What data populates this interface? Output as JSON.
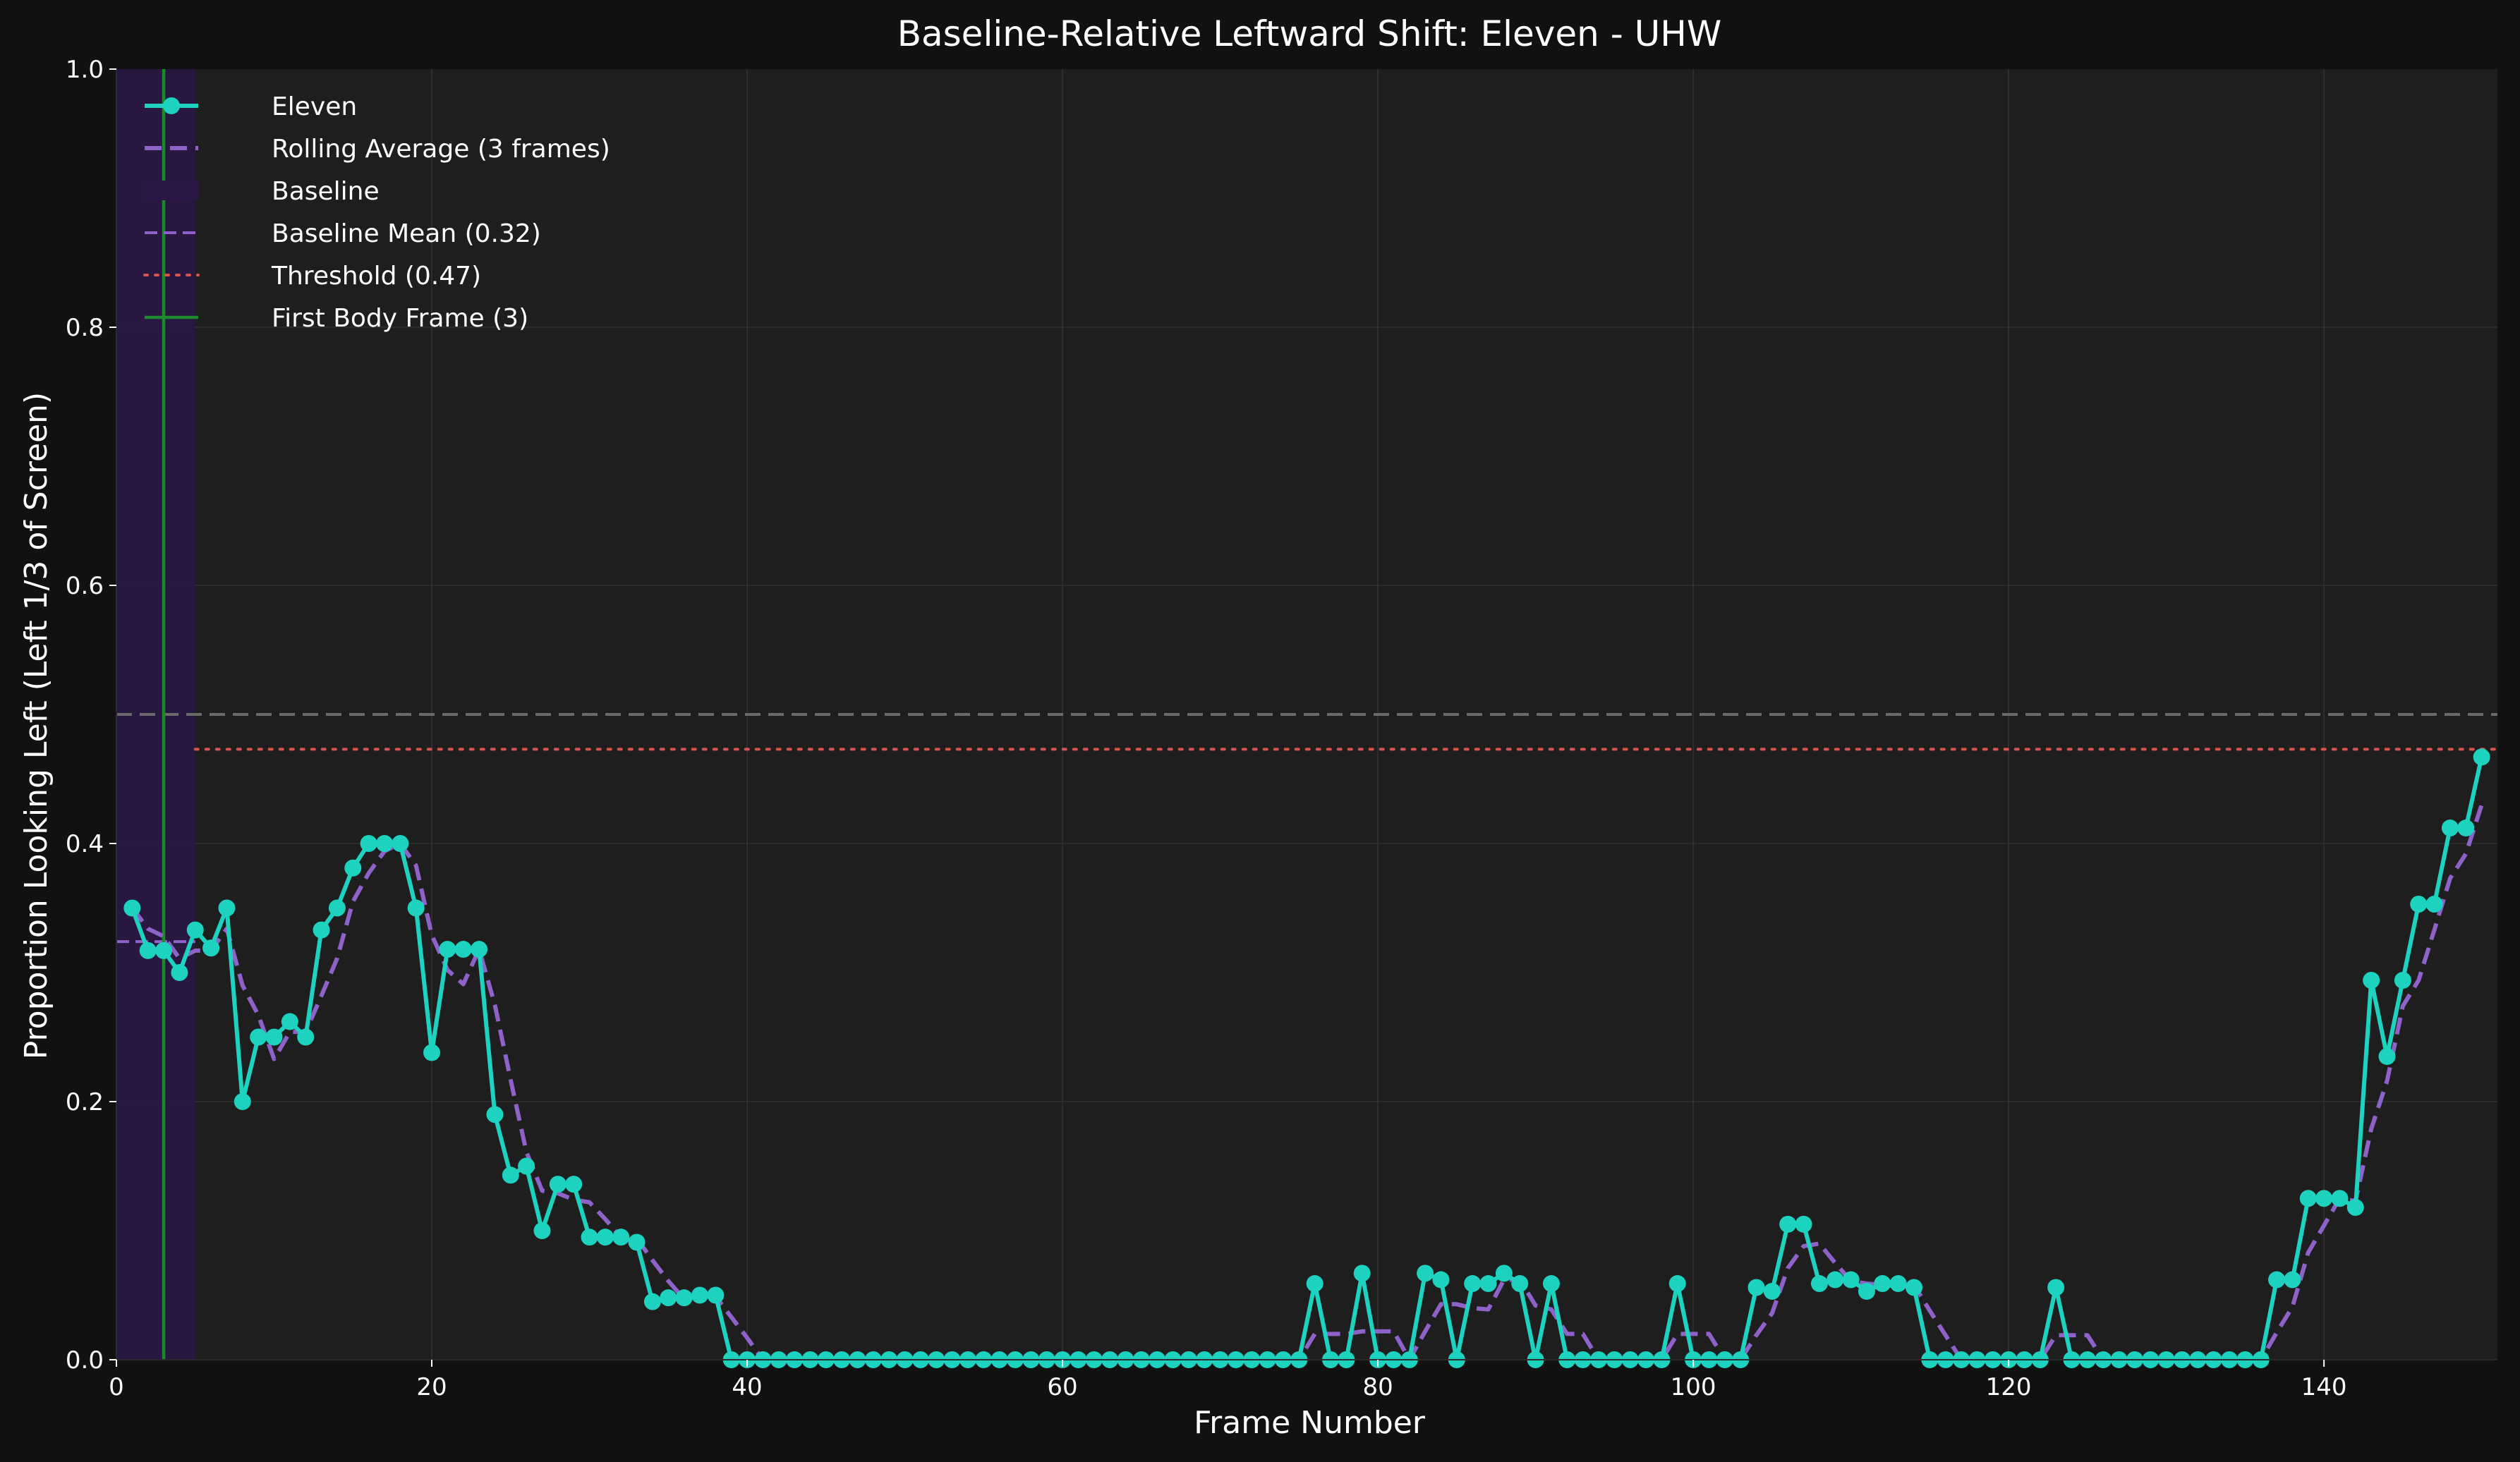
{
  "chart_data": {
    "type": "line",
    "title": "Baseline-Relative Leftward Shift: Eleven - UHW",
    "xlabel": "Frame Number",
    "ylabel": "Proportion Looking Left (Left 1/3 of Screen)",
    "xlim": [
      0,
      151
    ],
    "ylim": [
      0,
      1.0
    ],
    "xticks": [
      0,
      20,
      40,
      60,
      80,
      100,
      120,
      140
    ],
    "yticks": [
      0.0,
      0.2,
      0.4,
      0.6,
      0.8,
      1.0
    ],
    "xtick_labels": [
      "0",
      "20",
      "40",
      "60",
      "80",
      "100",
      "120",
      "140"
    ],
    "ytick_labels": [
      "0.0",
      "0.2",
      "0.4",
      "0.6",
      "0.8",
      "1.0"
    ],
    "grid": true,
    "legend_position": "top-left",
    "colors": {
      "background": "#111111",
      "plot_background": "#1e1e1e",
      "series": "#1dd3c0",
      "rolling": "#8f62c9",
      "baseline_band": "#2a1745",
      "baseline_mean": "#8f62c9",
      "threshold": "#d9534f",
      "first_body": "#1a8a2a",
      "reference": "#6a6a6a"
    },
    "baseline_region": [
      0,
      5
    ],
    "baseline_mean": 0.324,
    "threshold": 0.473,
    "threshold_start_frame": 5,
    "reference_line": 0.5,
    "first_body_frame": 3,
    "legend": [
      {
        "key": "series",
        "label": "Eleven"
      },
      {
        "key": "rolling",
        "label": "Rolling Average (3 frames)"
      },
      {
        "key": "band",
        "label": "Baseline"
      },
      {
        "key": "baseline_mean",
        "label": "Baseline Mean (0.32)"
      },
      {
        "key": "threshold",
        "label": "Threshold (0.47)"
      },
      {
        "key": "first_body",
        "label": "First Body Frame (3)"
      }
    ],
    "series": [
      {
        "name": "Eleven",
        "x": [
          1,
          2,
          3,
          4,
          5,
          6,
          7,
          8,
          9,
          10,
          11,
          12,
          13,
          14,
          15,
          16,
          17,
          18,
          19,
          20,
          21,
          22,
          23,
          24,
          25,
          26,
          27,
          28,
          29,
          30,
          31,
          32,
          33,
          34,
          35,
          36,
          37,
          38,
          39,
          40,
          41,
          42,
          43,
          44,
          45,
          46,
          47,
          48,
          49,
          50,
          51,
          52,
          53,
          54,
          55,
          56,
          57,
          58,
          59,
          60,
          61,
          62,
          63,
          64,
          65,
          66,
          67,
          68,
          69,
          70,
          71,
          72,
          73,
          74,
          75,
          76,
          77,
          78,
          79,
          80,
          81,
          82,
          83,
          84,
          85,
          86,
          87,
          88,
          89,
          90,
          91,
          92,
          93,
          94,
          95,
          96,
          97,
          98,
          99,
          100,
          101,
          102,
          103,
          104,
          105,
          106,
          107,
          108,
          109,
          110,
          111,
          112,
          113,
          114,
          115,
          116,
          117,
          118,
          119,
          120,
          121,
          122,
          123,
          124,
          125,
          126,
          127,
          128,
          129,
          130,
          131,
          132,
          133,
          134,
          135,
          136,
          137,
          138,
          139,
          140,
          141,
          142,
          143,
          144,
          145,
          146,
          147,
          148,
          149,
          150
        ],
        "values": [
          0.35,
          0.317,
          0.317,
          0.3,
          0.333,
          0.319,
          0.35,
          0.2,
          0.25,
          0.25,
          0.262,
          0.25,
          0.333,
          0.35,
          0.381,
          0.4,
          0.4,
          0.4,
          0.35,
          0.238,
          0.318,
          0.318,
          0.318,
          0.19,
          0.143,
          0.15,
          0.1,
          0.136,
          0.136,
          0.095,
          0.095,
          0.095,
          0.091,
          0.045,
          0.048,
          0.048,
          0.05,
          0.05,
          0.0,
          0.0,
          0.0,
          0.0,
          0.0,
          0.0,
          0.0,
          0.0,
          0.0,
          0.0,
          0.0,
          0.0,
          0.0,
          0.0,
          0.0,
          0.0,
          0.0,
          0.0,
          0.0,
          0.0,
          0.0,
          0.0,
          0.0,
          0.0,
          0.0,
          0.0,
          0.0,
          0.0,
          0.0,
          0.0,
          0.0,
          0.0,
          0.0,
          0.0,
          0.0,
          0.0,
          0.0,
          0.059,
          0.0,
          0.0,
          0.067,
          0.0,
          0.0,
          0.0,
          0.067,
          0.062,
          0.0,
          0.059,
          0.059,
          0.067,
          0.059,
          0.0,
          0.059,
          0.0,
          0.0,
          0.0,
          0.0,
          0.0,
          0.0,
          0.0,
          0.059,
          0.0,
          0.0,
          0.0,
          0.0,
          0.056,
          0.053,
          0.105,
          0.105,
          0.059,
          0.062,
          0.062,
          0.053,
          0.059,
          0.059,
          0.056,
          0.0,
          0.0,
          0.0,
          0.0,
          0.0,
          0.0,
          0.0,
          0.0,
          0.056,
          0.0,
          0.0,
          0.0,
          0.0,
          0.0,
          0.0,
          0.0,
          0.0,
          0.0,
          0.0,
          0.0,
          0.0,
          0.0,
          0.062,
          0.062,
          0.125,
          0.125,
          0.125,
          0.118,
          0.294,
          0.235,
          0.294,
          0.353,
          0.353,
          0.412,
          0.412,
          0.467
        ]
      },
      {
        "name": "Rolling Average (3 frames)",
        "x": [
          1,
          2,
          3,
          4,
          5,
          6,
          7,
          8,
          9,
          10,
          11,
          12,
          13,
          14,
          15,
          16,
          17,
          18,
          19,
          20,
          21,
          22,
          23,
          24,
          25,
          26,
          27,
          28,
          29,
          30,
          31,
          32,
          33,
          34,
          35,
          36,
          37,
          38,
          39,
          40,
          41,
          42,
          43,
          44,
          45,
          46,
          47,
          48,
          49,
          50,
          51,
          52,
          53,
          54,
          55,
          56,
          57,
          58,
          59,
          60,
          61,
          62,
          63,
          64,
          65,
          66,
          67,
          68,
          69,
          70,
          71,
          72,
          73,
          74,
          75,
          76,
          77,
          78,
          79,
          80,
          81,
          82,
          83,
          84,
          85,
          86,
          87,
          88,
          89,
          90,
          91,
          92,
          93,
          94,
          95,
          96,
          97,
          98,
          99,
          100,
          101,
          102,
          103,
          104,
          105,
          106,
          107,
          108,
          109,
          110,
          111,
          112,
          113,
          114,
          115,
          116,
          117,
          118,
          119,
          120,
          121,
          122,
          123,
          124,
          125,
          126,
          127,
          128,
          129,
          130,
          131,
          132,
          133,
          134,
          135,
          136,
          137,
          138,
          139,
          140,
          141,
          142,
          143,
          144,
          145,
          146,
          147,
          148,
          149,
          150
        ],
        "values": [
          0.35,
          0.334,
          0.328,
          0.311,
          0.317,
          0.317,
          0.334,
          0.29,
          0.267,
          0.233,
          0.254,
          0.254,
          0.282,
          0.311,
          0.355,
          0.377,
          0.394,
          0.4,
          0.383,
          0.329,
          0.302,
          0.291,
          0.318,
          0.275,
          0.217,
          0.161,
          0.131,
          0.129,
          0.124,
          0.122,
          0.109,
          0.095,
          0.094,
          0.077,
          0.061,
          0.047,
          0.049,
          0.049,
          0.033,
          0.017,
          0.0,
          0.0,
          0.0,
          0.0,
          0.0,
          0.0,
          0.0,
          0.0,
          0.0,
          0.0,
          0.0,
          0.0,
          0.0,
          0.0,
          0.0,
          0.0,
          0.0,
          0.0,
          0.0,
          0.0,
          0.0,
          0.0,
          0.0,
          0.0,
          0.0,
          0.0,
          0.0,
          0.0,
          0.0,
          0.0,
          0.0,
          0.0,
          0.0,
          0.0,
          0.0,
          0.02,
          0.02,
          0.02,
          0.022,
          0.022,
          0.022,
          0.0,
          0.022,
          0.043,
          0.043,
          0.04,
          0.039,
          0.062,
          0.062,
          0.042,
          0.039,
          0.02,
          0.02,
          0.0,
          0.0,
          0.0,
          0.0,
          0.0,
          0.02,
          0.02,
          0.02,
          0.0,
          0.0,
          0.019,
          0.036,
          0.071,
          0.088,
          0.09,
          0.075,
          0.061,
          0.059,
          0.058,
          0.057,
          0.058,
          0.038,
          0.019,
          0.0,
          0.0,
          0.0,
          0.0,
          0.0,
          0.0,
          0.019,
          0.019,
          0.019,
          0.0,
          0.0,
          0.0,
          0.0,
          0.0,
          0.0,
          0.0,
          0.0,
          0.0,
          0.0,
          0.0,
          0.021,
          0.041,
          0.083,
          0.104,
          0.125,
          0.123,
          0.179,
          0.216,
          0.274,
          0.294,
          0.333,
          0.373,
          0.392,
          0.43
        ]
      }
    ]
  }
}
